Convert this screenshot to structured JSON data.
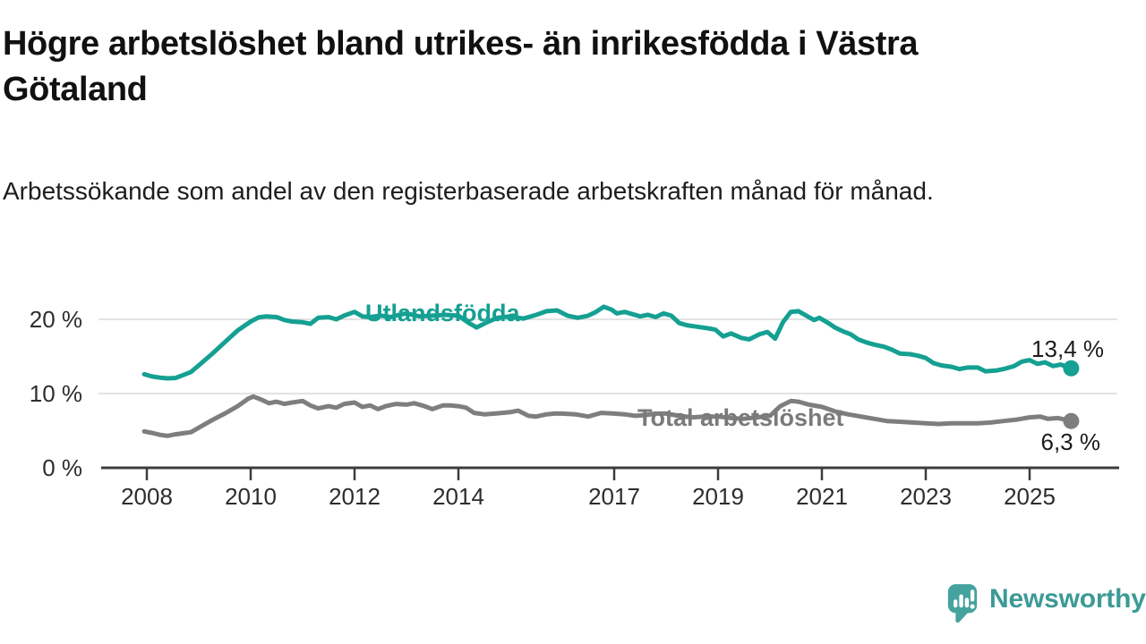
{
  "header": {
    "title": "Högre arbetslöshet bland utrikes- än inrikesfödda i Västra Götaland",
    "subtitle": "Arbetssökande som andel av den registerbaserade arbetskraften månad för månad."
  },
  "footer": {
    "brand": "Newsworthy",
    "brand_color": "#3D9A95",
    "logo_color": "#45A29E"
  },
  "chart_data": {
    "type": "line",
    "title": "Högre arbetslöshet bland utrikes- än inrikesfödda i Västra Götaland",
    "subtitle": "Arbetssökande som andel av den registerbaserade arbetskraften månad för månad.",
    "unit": "%",
    "grid": "horizontal",
    "legend_position": "inline-labels",
    "x_range": [
      2007.9,
      2026.1
    ],
    "ylim": [
      0,
      23
    ],
    "x_ticks": [
      2008,
      2010,
      2012,
      2014,
      2017,
      2019,
      2021,
      2023,
      2025
    ],
    "y_ticks": [
      {
        "value": 0,
        "label": "0 %"
      },
      {
        "value": 10,
        "label": "10 %"
      },
      {
        "value": 20,
        "label": "20 %"
      }
    ],
    "series": [
      {
        "name": "Utlandsfödda",
        "color": "#14A092",
        "end_value": 13.4,
        "end_label": "13,4 %",
        "points": [
          [
            2007.95,
            12.6
          ],
          [
            2008.1,
            12.3
          ],
          [
            2008.25,
            12.15
          ],
          [
            2008.4,
            12.05
          ],
          [
            2008.55,
            12.1
          ],
          [
            2008.7,
            12.5
          ],
          [
            2008.85,
            12.9
          ],
          [
            2009.0,
            13.8
          ],
          [
            2009.25,
            15.3
          ],
          [
            2009.5,
            16.9
          ],
          [
            2009.75,
            18.5
          ],
          [
            2010.0,
            19.7
          ],
          [
            2010.15,
            20.25
          ],
          [
            2010.3,
            20.4
          ],
          [
            2010.5,
            20.3
          ],
          [
            2010.65,
            19.9
          ],
          [
            2010.8,
            19.7
          ],
          [
            2011.0,
            19.6
          ],
          [
            2011.15,
            19.4
          ],
          [
            2011.3,
            20.2
          ],
          [
            2011.5,
            20.3
          ],
          [
            2011.65,
            20.0
          ],
          [
            2011.8,
            20.5
          ],
          [
            2012.0,
            21.0
          ],
          [
            2012.15,
            20.4
          ],
          [
            2012.3,
            20.3
          ],
          [
            2012.5,
            20.5
          ],
          [
            2012.7,
            20.3
          ],
          [
            2012.85,
            20.6
          ],
          [
            2013.0,
            20.8
          ],
          [
            2013.25,
            20.4
          ],
          [
            2013.5,
            20.5
          ],
          [
            2013.75,
            20.6
          ],
          [
            2014.0,
            20.5
          ],
          [
            2014.2,
            19.5
          ],
          [
            2014.35,
            18.9
          ],
          [
            2014.55,
            19.6
          ],
          [
            2014.75,
            20.2
          ],
          [
            2015.0,
            20.4
          ],
          [
            2015.25,
            20.1
          ],
          [
            2015.5,
            20.6
          ],
          [
            2015.7,
            21.1
          ],
          [
            2015.9,
            21.2
          ],
          [
            2016.1,
            20.5
          ],
          [
            2016.3,
            20.2
          ],
          [
            2016.5,
            20.5
          ],
          [
            2016.65,
            21.0
          ],
          [
            2016.8,
            21.7
          ],
          [
            2016.95,
            21.3
          ],
          [
            2017.05,
            20.8
          ],
          [
            2017.2,
            21.0
          ],
          [
            2017.35,
            20.7
          ],
          [
            2017.5,
            20.4
          ],
          [
            2017.65,
            20.6
          ],
          [
            2017.8,
            20.3
          ],
          [
            2017.95,
            20.8
          ],
          [
            2018.1,
            20.5
          ],
          [
            2018.25,
            19.5
          ],
          [
            2018.4,
            19.2
          ],
          [
            2018.6,
            19.0
          ],
          [
            2018.8,
            18.8
          ],
          [
            2018.95,
            18.6
          ],
          [
            2019.1,
            17.7
          ],
          [
            2019.25,
            18.1
          ],
          [
            2019.45,
            17.5
          ],
          [
            2019.6,
            17.3
          ],
          [
            2019.8,
            18.0
          ],
          [
            2019.95,
            18.3
          ],
          [
            2020.1,
            17.4
          ],
          [
            2020.25,
            19.6
          ],
          [
            2020.4,
            21.0
          ],
          [
            2020.55,
            21.1
          ],
          [
            2020.7,
            20.5
          ],
          [
            2020.85,
            19.9
          ],
          [
            2020.95,
            20.2
          ],
          [
            2021.1,
            19.6
          ],
          [
            2021.25,
            18.9
          ],
          [
            2021.4,
            18.4
          ],
          [
            2021.55,
            18.0
          ],
          [
            2021.7,
            17.3
          ],
          [
            2021.85,
            16.9
          ],
          [
            2022.0,
            16.6
          ],
          [
            2022.2,
            16.3
          ],
          [
            2022.35,
            15.9
          ],
          [
            2022.5,
            15.4
          ],
          [
            2022.7,
            15.3
          ],
          [
            2022.85,
            15.1
          ],
          [
            2023.0,
            14.8
          ],
          [
            2023.15,
            14.1
          ],
          [
            2023.3,
            13.8
          ],
          [
            2023.5,
            13.6
          ],
          [
            2023.65,
            13.3
          ],
          [
            2023.8,
            13.5
          ],
          [
            2024.0,
            13.5
          ],
          [
            2024.15,
            13.0
          ],
          [
            2024.35,
            13.1
          ],
          [
            2024.5,
            13.3
          ],
          [
            2024.7,
            13.7
          ],
          [
            2024.85,
            14.3
          ],
          [
            2025.0,
            14.5
          ],
          [
            2025.15,
            14.0
          ],
          [
            2025.3,
            14.2
          ],
          [
            2025.45,
            13.7
          ],
          [
            2025.6,
            13.9
          ],
          [
            2025.8,
            13.4
          ]
        ]
      },
      {
        "name": "Total arbetslöshet",
        "color": "#7E7E7E",
        "end_value": 6.3,
        "end_label": "6,3 %",
        "points": [
          [
            2007.95,
            4.9
          ],
          [
            2008.1,
            4.7
          ],
          [
            2008.25,
            4.45
          ],
          [
            2008.4,
            4.3
          ],
          [
            2008.55,
            4.5
          ],
          [
            2008.7,
            4.65
          ],
          [
            2008.85,
            4.8
          ],
          [
            2009.0,
            5.4
          ],
          [
            2009.25,
            6.4
          ],
          [
            2009.5,
            7.3
          ],
          [
            2009.75,
            8.3
          ],
          [
            2009.95,
            9.3
          ],
          [
            2010.05,
            9.6
          ],
          [
            2010.2,
            9.2
          ],
          [
            2010.35,
            8.7
          ],
          [
            2010.5,
            8.9
          ],
          [
            2010.65,
            8.6
          ],
          [
            2010.8,
            8.8
          ],
          [
            2011.0,
            9.0
          ],
          [
            2011.15,
            8.4
          ],
          [
            2011.3,
            8.0
          ],
          [
            2011.5,
            8.3
          ],
          [
            2011.65,
            8.1
          ],
          [
            2011.8,
            8.6
          ],
          [
            2012.0,
            8.8
          ],
          [
            2012.15,
            8.2
          ],
          [
            2012.3,
            8.4
          ],
          [
            2012.45,
            7.9
          ],
          [
            2012.6,
            8.3
          ],
          [
            2012.8,
            8.6
          ],
          [
            2013.0,
            8.5
          ],
          [
            2013.15,
            8.7
          ],
          [
            2013.35,
            8.3
          ],
          [
            2013.5,
            7.9
          ],
          [
            2013.7,
            8.4
          ],
          [
            2013.85,
            8.4
          ],
          [
            2014.0,
            8.3
          ],
          [
            2014.15,
            8.1
          ],
          [
            2014.3,
            7.4
          ],
          [
            2014.5,
            7.2
          ],
          [
            2014.7,
            7.3
          ],
          [
            2014.85,
            7.4
          ],
          [
            2015.0,
            7.5
          ],
          [
            2015.15,
            7.7
          ],
          [
            2015.35,
            7.0
          ],
          [
            2015.5,
            6.9
          ],
          [
            2015.7,
            7.2
          ],
          [
            2015.85,
            7.3
          ],
          [
            2016.0,
            7.3
          ],
          [
            2016.25,
            7.2
          ],
          [
            2016.5,
            6.9
          ],
          [
            2016.75,
            7.4
          ],
          [
            2017.0,
            7.3
          ],
          [
            2017.2,
            7.2
          ],
          [
            2017.4,
            7.0
          ],
          [
            2017.6,
            7.1
          ],
          [
            2017.8,
            7.3
          ],
          [
            2018.0,
            7.3
          ],
          [
            2018.25,
            7.0
          ],
          [
            2018.5,
            6.8
          ],
          [
            2018.75,
            6.9
          ],
          [
            2019.0,
            6.9
          ],
          [
            2019.25,
            6.7
          ],
          [
            2019.5,
            6.6
          ],
          [
            2019.75,
            6.8
          ],
          [
            2020.0,
            7.0
          ],
          [
            2020.2,
            8.3
          ],
          [
            2020.4,
            9.0
          ],
          [
            2020.55,
            8.9
          ],
          [
            2020.75,
            8.5
          ],
          [
            2021.0,
            8.2
          ],
          [
            2021.25,
            7.6
          ],
          [
            2021.5,
            7.2
          ],
          [
            2021.75,
            6.9
          ],
          [
            2022.0,
            6.6
          ],
          [
            2022.25,
            6.3
          ],
          [
            2022.5,
            6.2
          ],
          [
            2022.75,
            6.1
          ],
          [
            2023.0,
            6.0
          ],
          [
            2023.25,
            5.9
          ],
          [
            2023.5,
            6.0
          ],
          [
            2023.75,
            6.0
          ],
          [
            2024.0,
            6.0
          ],
          [
            2024.25,
            6.1
          ],
          [
            2024.5,
            6.3
          ],
          [
            2024.75,
            6.5
          ],
          [
            2025.0,
            6.8
          ],
          [
            2025.2,
            6.9
          ],
          [
            2025.35,
            6.6
          ],
          [
            2025.55,
            6.7
          ],
          [
            2025.8,
            6.3
          ]
        ]
      }
    ]
  }
}
